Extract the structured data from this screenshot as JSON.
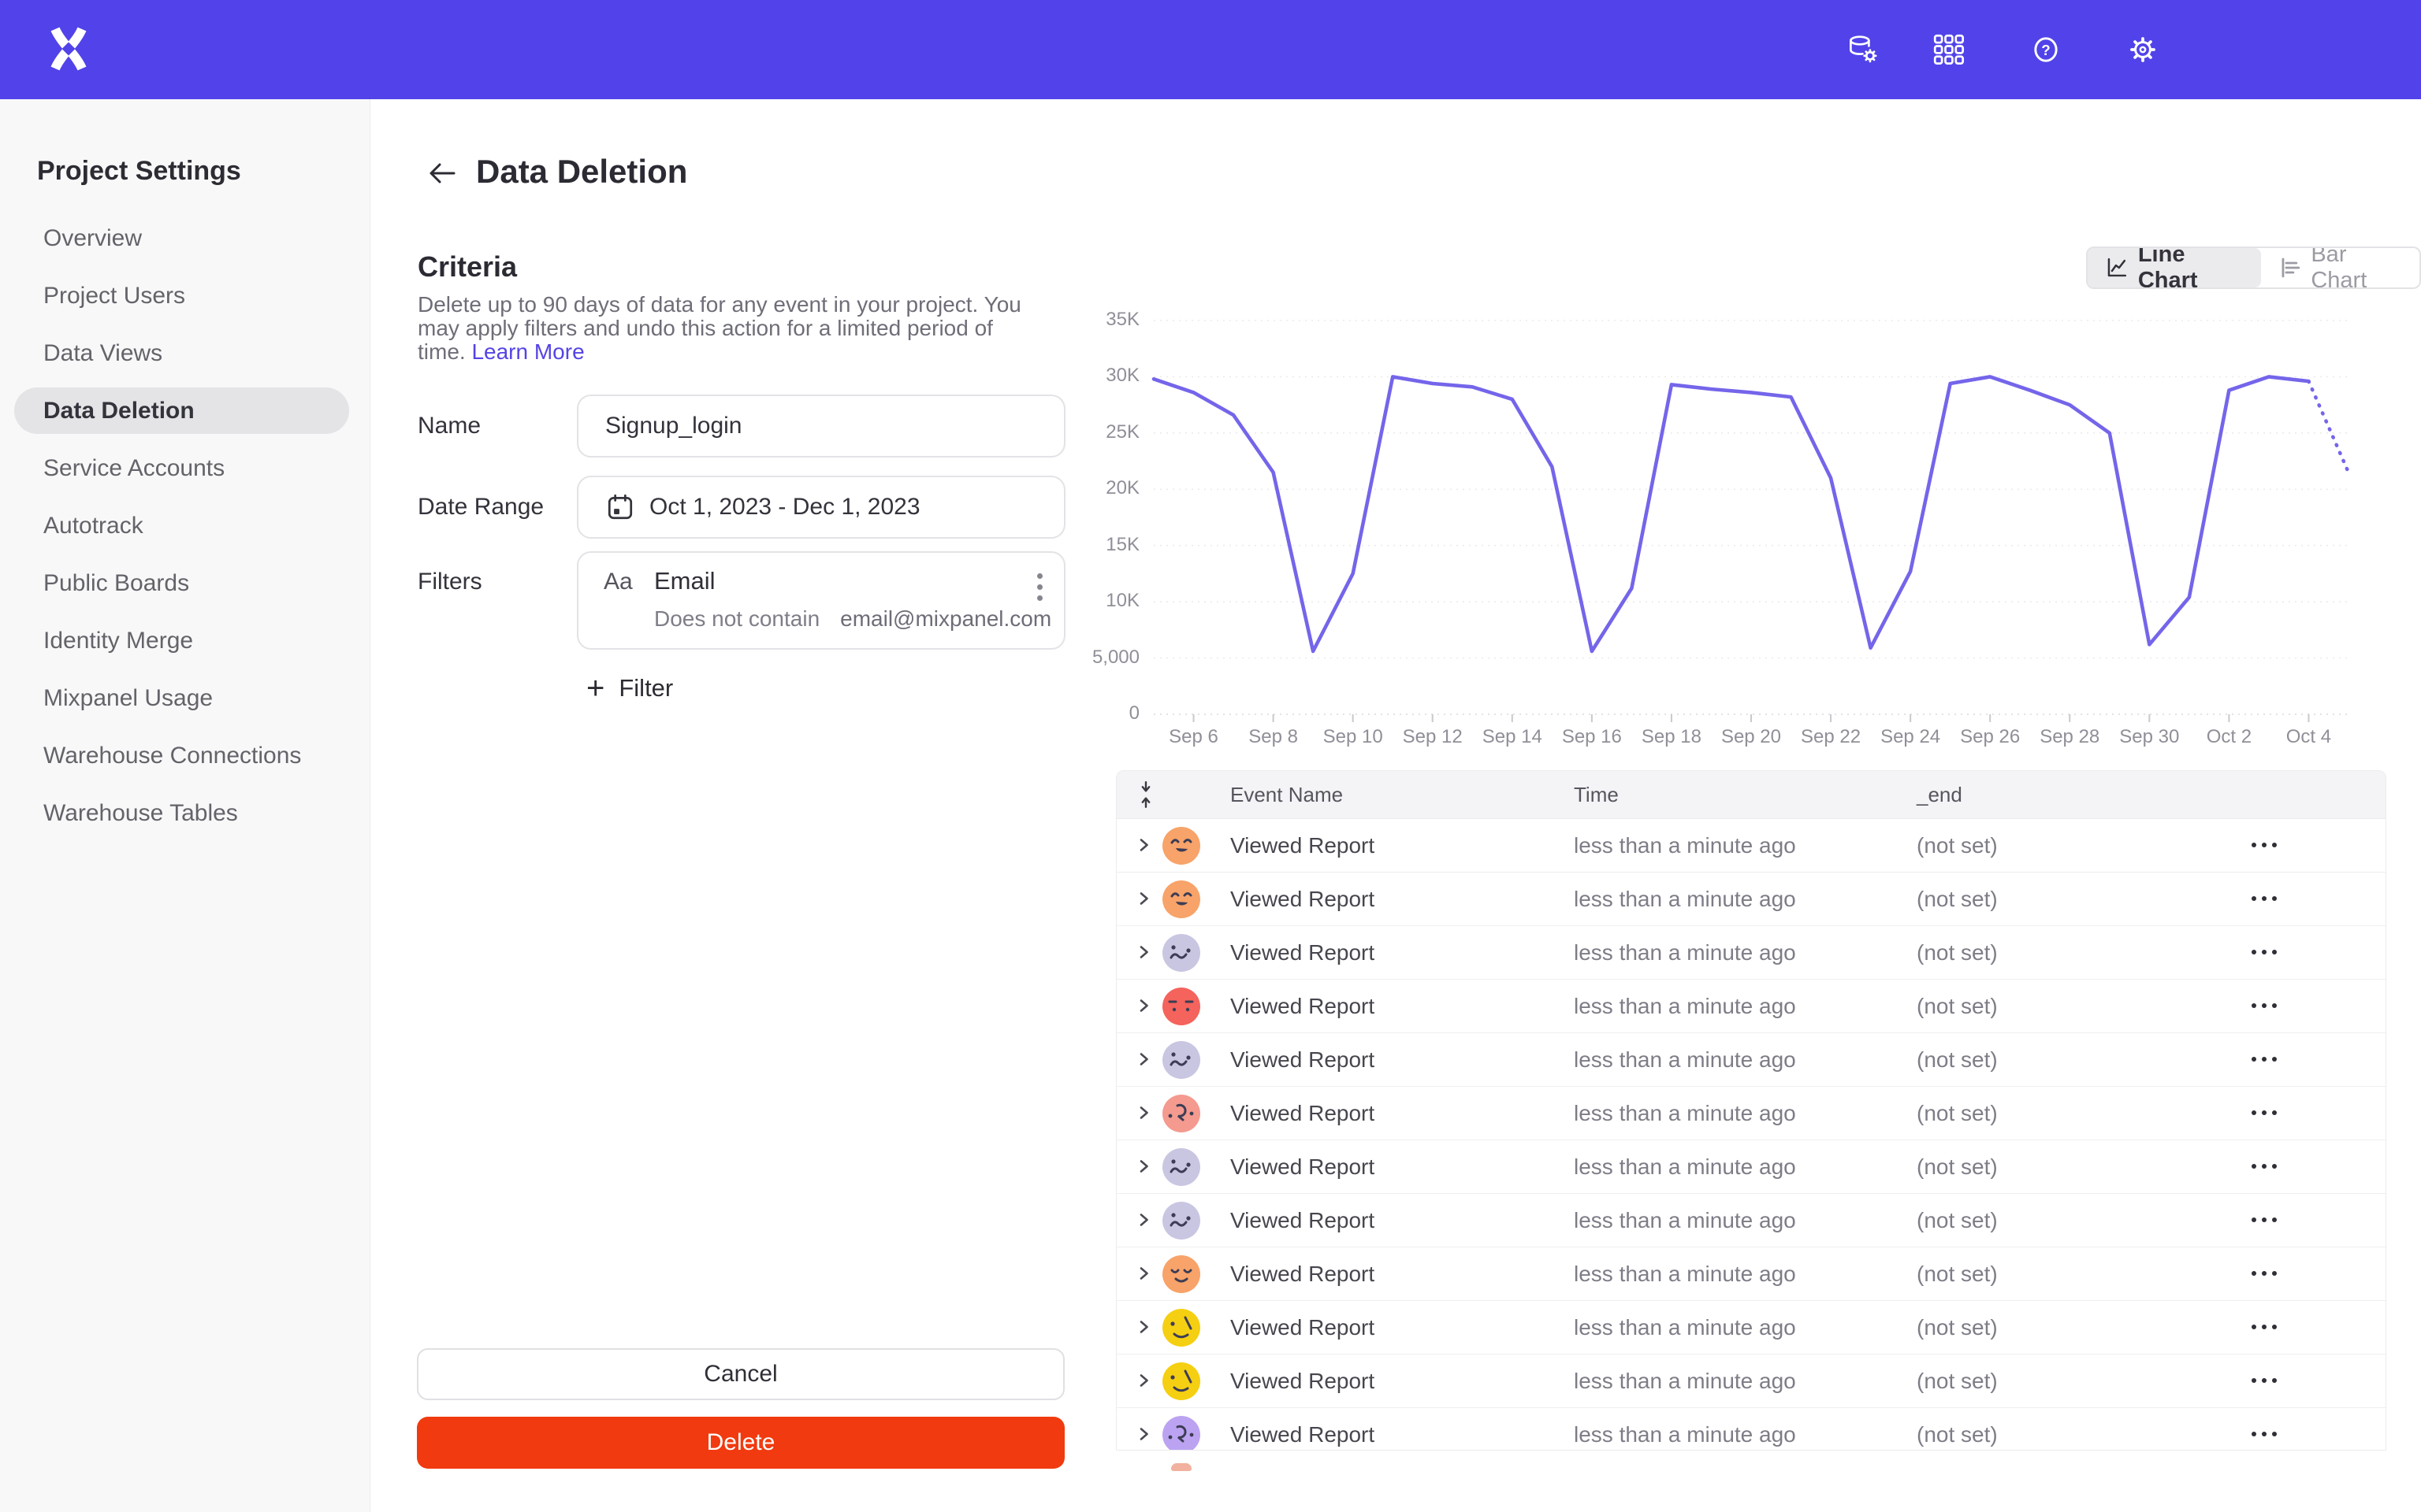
{
  "topbar": {
    "icons": [
      {
        "name": "data-management-icon"
      },
      {
        "name": "apps-grid-icon"
      },
      {
        "name": "help-icon"
      },
      {
        "name": "settings-gear-icon"
      }
    ]
  },
  "sidebar": {
    "title": "Project Settings",
    "items": [
      {
        "label": "Overview",
        "active": false
      },
      {
        "label": "Project Users",
        "active": false
      },
      {
        "label": "Data Views",
        "active": false
      },
      {
        "label": "Data Deletion",
        "active": true
      },
      {
        "label": "Service Accounts",
        "active": false
      },
      {
        "label": "Autotrack",
        "active": false
      },
      {
        "label": "Public Boards",
        "active": false
      },
      {
        "label": "Identity Merge",
        "active": false
      },
      {
        "label": "Mixpanel Usage",
        "active": false
      },
      {
        "label": "Warehouse Connections",
        "active": false
      },
      {
        "label": "Warehouse Tables",
        "active": false
      }
    ]
  },
  "header": {
    "title": "Data Deletion"
  },
  "criteria": {
    "heading": "Criteria",
    "description_lines": [
      "Delete up to 90 days of data for any event in your project. You",
      "may apply filters and undo this action for a limited period of",
      "time."
    ],
    "learn_more_label": "Learn More",
    "name_label": "Name",
    "name_value": "Signup_login",
    "date_label": "Date Range",
    "date_value": "Oct 1, 2023 - Dec 1, 2023",
    "filters_label": "Filters",
    "filter_card": {
      "type_badge": "Aa",
      "property": "Email",
      "operator": "Does not contain",
      "value": "email@mixpanel.com"
    },
    "add_filter_label": "Filter",
    "cancel_label": "Cancel",
    "delete_label": "Delete"
  },
  "chart_toggle": {
    "line_label": "Line Chart",
    "bar_label": "Bar Chart",
    "selected": "line"
  },
  "chart_data": {
    "type": "line",
    "title": "",
    "x": [
      "Sep 5",
      "Sep 6",
      "Sep 7",
      "Sep 8",
      "Sep 9",
      "Sep 10",
      "Sep 11",
      "Sep 12",
      "Sep 13",
      "Sep 14",
      "Sep 15",
      "Sep 16",
      "Sep 17",
      "Sep 18",
      "Sep 19",
      "Sep 20",
      "Sep 21",
      "Sep 22",
      "Sep 23",
      "Sep 24",
      "Sep 25",
      "Sep 26",
      "Sep 27",
      "Sep 28",
      "Sep 29",
      "Sep 30",
      "Oct 1",
      "Oct 2",
      "Oct 3",
      "Oct 4",
      "Oct 5"
    ],
    "values": [
      29800,
      28600,
      26600,
      21500,
      5600,
      12500,
      30000,
      29400,
      29100,
      28000,
      22000,
      5600,
      11200,
      29300,
      28900,
      28600,
      28200,
      21000,
      5900,
      12700,
      29400,
      30000,
      28800,
      27500,
      25000,
      6200,
      10400,
      28800,
      30000,
      29600,
      21500
    ],
    "dotted_tail_from_index": 29,
    "x_tick_labels": [
      "Sep 6",
      "Sep 8",
      "Sep 10",
      "Sep 12",
      "Sep 14",
      "Sep 16",
      "Sep 18",
      "Sep 20",
      "Sep 22",
      "Sep 24",
      "Sep 26",
      "Sep 28",
      "Sep 30",
      "Oct 2",
      "Oct 4"
    ],
    "y_tick_labels": [
      "0",
      "5,000",
      "10K",
      "15K",
      "20K",
      "25K",
      "30K",
      "35K"
    ],
    "ylim": [
      0,
      35000
    ],
    "line_color": "#7465EA",
    "grid": true,
    "legend": "none"
  },
  "table": {
    "columns": [
      "Event Name",
      "Time",
      "_end"
    ],
    "rows": [
      {
        "event": "Viewed Report",
        "time": "less than a minute ago",
        "end": "(not set)",
        "avatar_color": "#F8A369",
        "face": "open-smile"
      },
      {
        "event": "Viewed Report",
        "time": "less than a minute ago",
        "end": "(not set)",
        "avatar_color": "#F8A369",
        "face": "open-smile"
      },
      {
        "event": "Viewed Report",
        "time": "less than a minute ago",
        "end": "(not set)",
        "avatar_color": "#C9C6E2",
        "face": "squiggle"
      },
      {
        "event": "Viewed Report",
        "time": "less than a minute ago",
        "end": "(not set)",
        "avatar_color": "#F4635C",
        "face": "dash"
      },
      {
        "event": "Viewed Report",
        "time": "less than a minute ago",
        "end": "(not set)",
        "avatar_color": "#C9C6E2",
        "face": "squiggle"
      },
      {
        "event": "Viewed Report",
        "time": "less than a minute ago",
        "end": "(not set)",
        "avatar_color": "#F49A8F",
        "face": "curl"
      },
      {
        "event": "Viewed Report",
        "time": "less than a minute ago",
        "end": "(not set)",
        "avatar_color": "#C9C6E2",
        "face": "squiggle"
      },
      {
        "event": "Viewed Report",
        "time": "less than a minute ago",
        "end": "(not set)",
        "avatar_color": "#C9C6E2",
        "face": "squiggle"
      },
      {
        "event": "Viewed Report",
        "time": "less than a minute ago",
        "end": "(not set)",
        "avatar_color": "#F8A369",
        "face": "content"
      },
      {
        "event": "Viewed Report",
        "time": "less than a minute ago",
        "end": "(not set)",
        "avatar_color": "#F5CF11",
        "face": "wink"
      },
      {
        "event": "Viewed Report",
        "time": "less than a minute ago",
        "end": "(not set)",
        "avatar_color": "#F5CF11",
        "face": "wink"
      },
      {
        "event": "Viewed Report",
        "time": "less than a minute ago",
        "end": "(not set)",
        "avatar_color": "#BCA3F1",
        "face": "curl"
      }
    ]
  },
  "colors": {
    "topbar": "#5143E9",
    "accent_link": "#5544E4",
    "delete_button": "#F13A0F",
    "chart_line": "#7465EA",
    "sidebar_active_bg": "#e4e4e7"
  }
}
